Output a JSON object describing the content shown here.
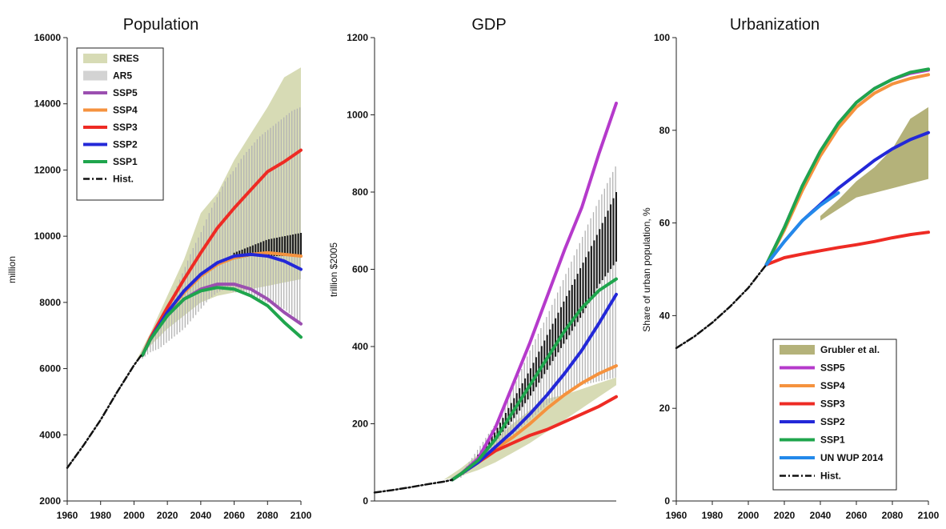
{
  "chart_data": [
    {
      "type": "line",
      "title": "Population",
      "ylabel": "million",
      "xlabel": "",
      "xlim": [
        1960,
        2100
      ],
      "ylim": [
        2000,
        16000
      ],
      "xticks": [
        "1960",
        "1980",
        "2000",
        "2020",
        "2040",
        "2060",
        "2080",
        "2100"
      ],
      "yticks": [
        "2000",
        "4000",
        "6000",
        "8000",
        "10000",
        "12000",
        "14000",
        "16000"
      ],
      "legend": "top-left",
      "legend_entries": [
        "SRES",
        "AR5",
        "SSP5",
        "SSP4",
        "SSP3",
        "SSP2",
        "SSP1",
        "Hist."
      ],
      "bands": [
        {
          "name": "SRES",
          "kind": "area",
          "color": "#d7dbb5",
          "x": [
            2000,
            2010,
            2020,
            2030,
            2040,
            2050,
            2060,
            2070,
            2080,
            2090,
            2100
          ],
          "low": [
            6100,
            6700,
            7200,
            7600,
            8000,
            8200,
            8300,
            8400,
            8500,
            8600,
            8700
          ],
          "high": [
            6100,
            7100,
            8200,
            9300,
            10700,
            11300,
            12300,
            13100,
            13900,
            14800,
            15100
          ]
        },
        {
          "name": "AR5",
          "kind": "hatch",
          "color": "#b3b3b3",
          "x": [
            2005,
            2010,
            2015,
            2020,
            2025,
            2030,
            2035,
            2040,
            2045,
            2050,
            2055,
            2060,
            2065,
            2070,
            2075,
            2080,
            2085,
            2090,
            2095,
            2100
          ],
          "low": [
            6300,
            6500,
            6600,
            6800,
            7000,
            7200,
            7500,
            7800,
            8100,
            8300,
            8400,
            8300,
            8300,
            8200,
            8100,
            8000,
            7900,
            7800,
            7600,
            7300
          ],
          "high": [
            6500,
            7000,
            7400,
            7900,
            8400,
            9000,
            9600,
            10100,
            10700,
            11200,
            11700,
            12000,
            12400,
            12700,
            13000,
            13200,
            13400,
            13600,
            13800,
            13900
          ]
        },
        {
          "name": "Core",
          "kind": "hatch",
          "color": "#1a1a1a",
          "x": [
            2060,
            2065,
            2070,
            2075,
            2080,
            2085,
            2090,
            2095,
            2100
          ],
          "low": [
            9300,
            9350,
            9400,
            9400,
            9400,
            9400,
            9400,
            9400,
            9350
          ],
          "high": [
            9500,
            9600,
            9700,
            9800,
            9900,
            9950,
            10000,
            10050,
            10100
          ]
        }
      ],
      "series": [
        {
          "name": "SSP5",
          "color": "#9b4fb0",
          "x": [
            2005,
            2010,
            2020,
            2030,
            2040,
            2050,
            2060,
            2070,
            2080,
            2090,
            2100
          ],
          "values": [
            6400,
            6900,
            7600,
            8100,
            8400,
            8550,
            8550,
            8400,
            8100,
            7700,
            7350
          ]
        },
        {
          "name": "SSP4",
          "color": "#f5923e",
          "x": [
            2005,
            2010,
            2020,
            2030,
            2040,
            2050,
            2060,
            2070,
            2080,
            2090,
            2100
          ],
          "values": [
            6400,
            6900,
            7700,
            8300,
            8800,
            9150,
            9350,
            9450,
            9500,
            9450,
            9400
          ]
        },
        {
          "name": "SSP3",
          "color": "#ee2b24",
          "x": [
            2005,
            2010,
            2020,
            2030,
            2040,
            2050,
            2060,
            2070,
            2080,
            2090,
            2100
          ],
          "values": [
            6400,
            6950,
            7850,
            8700,
            9500,
            10250,
            10850,
            11400,
            11950,
            12250,
            12600
          ]
        },
        {
          "name": "SSP2",
          "color": "#2328d8",
          "x": [
            2005,
            2010,
            2020,
            2030,
            2040,
            2050,
            2060,
            2070,
            2080,
            2090,
            2100
          ],
          "values": [
            6400,
            6900,
            7700,
            8350,
            8850,
            9200,
            9400,
            9450,
            9400,
            9250,
            9000
          ]
        },
        {
          "name": "SSP1",
          "color": "#1fa54d",
          "x": [
            2005,
            2010,
            2020,
            2030,
            2040,
            2050,
            2060,
            2070,
            2080,
            2090,
            2100
          ],
          "values": [
            6400,
            6900,
            7600,
            8100,
            8350,
            8450,
            8400,
            8200,
            7900,
            7400,
            6950
          ]
        },
        {
          "name": "Hist.",
          "color": "#111111",
          "dash": "8,3,2,3",
          "x": [
            1960,
            1970,
            1980,
            1990,
            2000,
            2005
          ],
          "values": [
            3000,
            3700,
            4450,
            5300,
            6100,
            6450
          ]
        }
      ]
    },
    {
      "type": "line",
      "title": "GDP",
      "ylabel": "trillion $2005",
      "xlabel": "",
      "xlim": [
        1960,
        2100
      ],
      "ylim": [
        0,
        1200
      ],
      "xticks": [],
      "yticks": [
        "0",
        "200",
        "400",
        "600",
        "800",
        "1000",
        "1200"
      ],
      "legend": "none",
      "bands": [
        {
          "name": "SRES",
          "kind": "area",
          "color": "#d7dbb5",
          "x": [
            2000,
            2010,
            2020,
            2030,
            2040,
            2050,
            2060,
            2070,
            2080,
            2090,
            2100
          ],
          "low": [
            55,
            65,
            80,
            100,
            125,
            150,
            180,
            210,
            240,
            270,
            300
          ],
          "high": [
            55,
            85,
            120,
            160,
            200,
            235,
            265,
            275,
            290,
            305,
            320
          ]
        },
        {
          "name": "AR5",
          "kind": "hatch",
          "color": "#b3b3b3",
          "x": [
            2010,
            2020,
            2030,
            2040,
            2050,
            2060,
            2070,
            2080,
            2090,
            2100
          ],
          "low": [
            60,
            100,
            130,
            170,
            210,
            250,
            280,
            300,
            310,
            320
          ],
          "high": [
            70,
            135,
            200,
            290,
            390,
            480,
            580,
            680,
            780,
            870
          ]
        },
        {
          "name": "Core",
          "kind": "hatch",
          "color": "#1a1a1a",
          "x": [
            2020,
            2030,
            2040,
            2050,
            2060,
            2070,
            2080,
            2090,
            2100
          ],
          "low": [
            110,
            155,
            210,
            270,
            340,
            410,
            480,
            560,
            620
          ],
          "high": [
            120,
            180,
            260,
            340,
            430,
            520,
            610,
            700,
            800
          ]
        }
      ],
      "series": [
        {
          "name": "SSP5",
          "color": "#b53acb",
          "x": [
            2005,
            2010,
            2020,
            2030,
            2040,
            2050,
            2060,
            2070,
            2080,
            2090,
            2100
          ],
          "values": [
            55,
            70,
            110,
            190,
            300,
            410,
            530,
            650,
            760,
            900,
            1030
          ]
        },
        {
          "name": "SSP4",
          "color": "#f5923e",
          "x": [
            2005,
            2010,
            2020,
            2030,
            2040,
            2050,
            2060,
            2070,
            2080,
            2090,
            2100
          ],
          "values": [
            55,
            70,
            100,
            135,
            165,
            200,
            240,
            275,
            305,
            330,
            350
          ]
        },
        {
          "name": "SSP3",
          "color": "#ee2b24",
          "x": [
            2005,
            2010,
            2020,
            2030,
            2040,
            2050,
            2060,
            2070,
            2080,
            2090,
            2100
          ],
          "values": [
            55,
            70,
            100,
            130,
            150,
            170,
            185,
            205,
            225,
            245,
            270
          ]
        },
        {
          "name": "SSP2",
          "color": "#2328d8",
          "x": [
            2005,
            2010,
            2020,
            2030,
            2040,
            2050,
            2060,
            2070,
            2080,
            2090,
            2100
          ],
          "values": [
            55,
            70,
            100,
            140,
            180,
            225,
            275,
            330,
            390,
            460,
            535
          ]
        },
        {
          "name": "SSP1",
          "color": "#1fa54d",
          "x": [
            2005,
            2010,
            2020,
            2030,
            2040,
            2050,
            2060,
            2070,
            2080,
            2090,
            2100
          ],
          "values": [
            55,
            70,
            105,
            160,
            230,
            300,
            370,
            440,
            500,
            545,
            575
          ]
        },
        {
          "name": "Hist.",
          "color": "#111111",
          "dash": "8,3,2,3",
          "x": [
            1960,
            1970,
            1980,
            1990,
            2000,
            2005
          ],
          "values": [
            22,
            28,
            35,
            43,
            50,
            55
          ]
        }
      ]
    },
    {
      "type": "line",
      "title": "Urbanization",
      "ylabel": "Share of urban population, %",
      "xlabel": "",
      "xlim": [
        1960,
        2100
      ],
      "ylim": [
        0,
        100
      ],
      "xticks": [
        "1960",
        "1980",
        "2000",
        "2020",
        "2040",
        "2060",
        "2080",
        "2100"
      ],
      "yticks": [
        "0",
        "20",
        "40",
        "60",
        "80",
        "100"
      ],
      "legend": "bottom-right",
      "legend_entries": [
        "Grubler et al.",
        "SSP5",
        "SSP4",
        "SSP3",
        "SSP2",
        "SSP1",
        "UN WUP 2014",
        "Hist."
      ],
      "bands": [
        {
          "name": "Grubler et al.",
          "kind": "area",
          "color": "#b4b27a",
          "x": [
            2040,
            2050,
            2060,
            2070,
            2080,
            2090,
            2100
          ],
          "low": [
            60.5,
            63,
            65.5,
            66.5,
            67.5,
            68.5,
            69.5
          ],
          "high": [
            61.5,
            65,
            69,
            72,
            76,
            82.5,
            85
          ]
        }
      ],
      "series": [
        {
          "name": "SSP5",
          "color": "#b53acb",
          "x": [
            2010,
            2020,
            2030,
            2040,
            2050,
            2060,
            2070,
            2080,
            2090,
            2100
          ],
          "values": [
            51,
            59,
            68,
            75.5,
            81.5,
            86,
            89,
            91,
            92.3,
            93
          ]
        },
        {
          "name": "SSP4",
          "color": "#f5923e",
          "x": [
            2010,
            2020,
            2030,
            2040,
            2050,
            2060,
            2070,
            2080,
            2090,
            2100
          ],
          "values": [
            51,
            58.5,
            67,
            74.5,
            80.5,
            85,
            88,
            90,
            91.2,
            92
          ]
        },
        {
          "name": "SSP3",
          "color": "#ee2b24",
          "x": [
            2010,
            2020,
            2030,
            2040,
            2050,
            2060,
            2070,
            2080,
            2090,
            2100
          ],
          "values": [
            51,
            52.5,
            53.3,
            54,
            54.7,
            55.3,
            56,
            56.8,
            57.5,
            58
          ]
        },
        {
          "name": "SSP2",
          "color": "#2328d8",
          "x": [
            2010,
            2020,
            2030,
            2040,
            2050,
            2060,
            2070,
            2080,
            2090,
            2100
          ],
          "values": [
            51,
            56,
            60.5,
            64,
            67.5,
            70.5,
            73.5,
            76,
            78,
            79.5
          ]
        },
        {
          "name": "SSP1",
          "color": "#1fa54d",
          "x": [
            2010,
            2020,
            2030,
            2040,
            2050,
            2060,
            2070,
            2080,
            2090,
            2100
          ],
          "values": [
            51,
            59,
            68,
            75.5,
            81.5,
            86,
            89,
            91,
            92.5,
            93.2
          ]
        },
        {
          "name": "UN WUP 2014",
          "color": "#2389ea",
          "x": [
            2010,
            2020,
            2030,
            2040,
            2050
          ],
          "values": [
            51,
            56,
            60.5,
            63.8,
            66.5
          ]
        },
        {
          "name": "Hist.",
          "color": "#111111",
          "dash": "8,3,2,3",
          "x": [
            1960,
            1970,
            1980,
            1990,
            2000,
            2010
          ],
          "values": [
            33,
            35.5,
            38.5,
            42,
            46,
            51
          ]
        }
      ]
    }
  ]
}
